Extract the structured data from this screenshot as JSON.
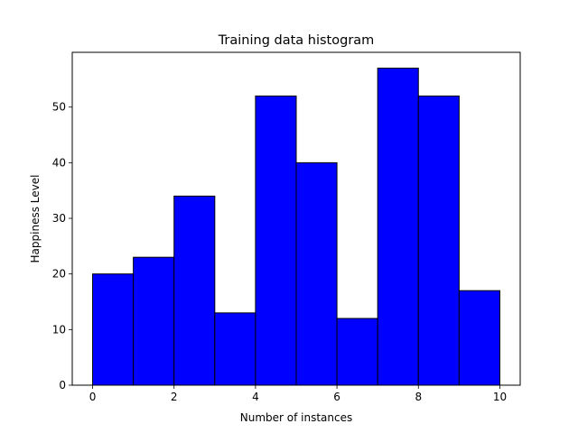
{
  "chart_data": {
    "type": "bar",
    "title": "Training data histogram",
    "xlabel": "Number of instances",
    "ylabel": "Happiness Level",
    "bin_edges": [
      0,
      1,
      2,
      3,
      4,
      5,
      6,
      7,
      8,
      9,
      10
    ],
    "values": [
      20,
      23,
      34,
      13,
      52,
      40,
      12,
      57,
      52,
      17
    ],
    "xlim": [
      -0.5,
      10.5
    ],
    "ylim": [
      0,
      59.85
    ],
    "xticks": [
      0,
      2,
      4,
      6,
      8,
      10
    ],
    "yticks": [
      0,
      10,
      20,
      30,
      40,
      50
    ],
    "bar_color": "#0000ff",
    "edge_color": "#000000",
    "grid": false
  }
}
